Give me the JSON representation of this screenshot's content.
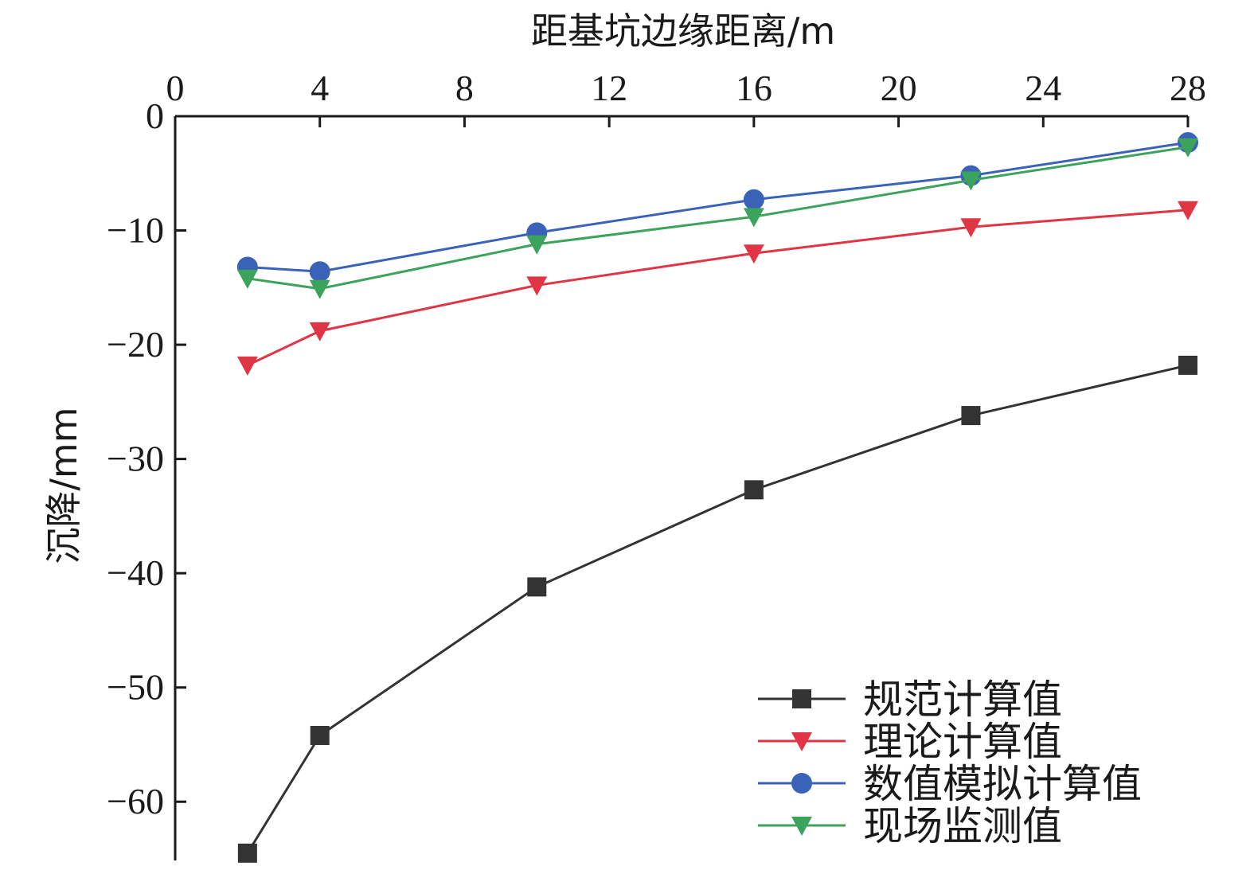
{
  "chart_data": {
    "type": "line",
    "title": "",
    "xlabel": "距基坑边缘距离/m",
    "ylabel": "沉降/mm",
    "x_axis_position": "top",
    "xlim": [
      0,
      28
    ],
    "ylim": [
      -65,
      0
    ],
    "xticks": [
      0,
      4,
      8,
      12,
      16,
      20,
      24,
      28
    ],
    "yticks": [
      0,
      -10,
      -20,
      -30,
      -40,
      -50,
      -60
    ],
    "ytick_labels": [
      "0",
      "−10",
      "−20",
      "−30",
      "−40",
      "−50",
      "−60"
    ],
    "grid": false,
    "legend_position": "bottom-right",
    "x": [
      2,
      4,
      10,
      16,
      22,
      28
    ],
    "series": [
      {
        "name": "规范计算值",
        "color": "#333333",
        "marker": "square",
        "values": [
          -64.5,
          -54.2,
          -41.2,
          -32.7,
          -26.2,
          -21.8
        ]
      },
      {
        "name": "理论计算值",
        "color": "#e03545",
        "marker": "triangle-down",
        "values": [
          -21.8,
          -18.8,
          -14.8,
          -12.0,
          -9.7,
          -8.2
        ]
      },
      {
        "name": "数值模拟计算值",
        "color": "#3a62b8",
        "marker": "circle",
        "values": [
          -13.2,
          -13.6,
          -10.2,
          -7.3,
          -5.2,
          -2.3
        ]
      },
      {
        "name": "现场监测值",
        "color": "#3ca35c",
        "marker": "triangle-down",
        "values": [
          -14.2,
          -15.1,
          -11.2,
          -8.8,
          -5.6,
          -2.7
        ]
      }
    ]
  }
}
